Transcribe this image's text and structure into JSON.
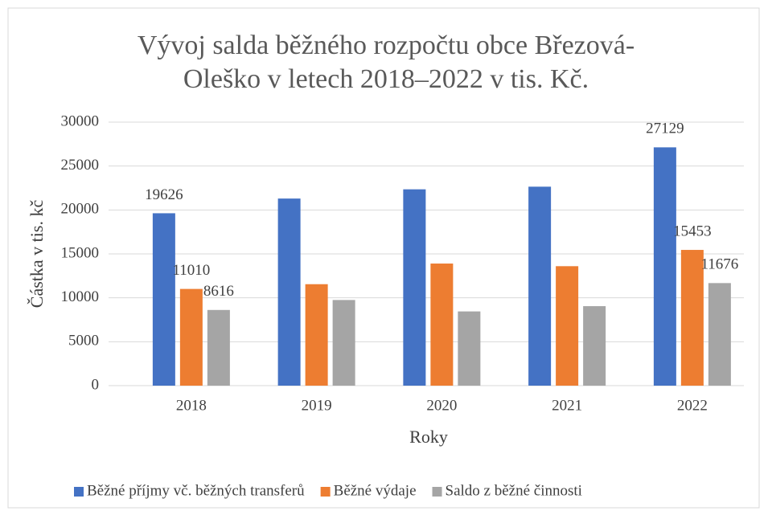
{
  "chart_data": {
    "type": "bar",
    "title": "Vývoj salda běžného rozpočtu obce Březová-Oleško v letech 2018–2022 v tis. Kč.",
    "x_label": "Roky",
    "y_label": "Částka v tis. kč",
    "categories": [
      "2018",
      "2019",
      "2020",
      "2021",
      "2022"
    ],
    "series": [
      {
        "name": "Běžné příjmy vč. běžných transferů",
        "color": "#4472c4",
        "values": [
          19626,
          21300,
          22350,
          22650,
          27129
        ],
        "value_labels": [
          "19626",
          null,
          null,
          null,
          "27129"
        ]
      },
      {
        "name": "Běžné výdaje",
        "color": "#ed7d31",
        "values": [
          11010,
          11550,
          13900,
          13600,
          15453
        ],
        "value_labels": [
          "11010",
          null,
          null,
          null,
          "15453"
        ]
      },
      {
        "name": "Saldo z běžné činnosti",
        "color": "#a5a5a5",
        "values": [
          8616,
          9750,
          8450,
          9050,
          11676
        ],
        "value_labels": [
          "8616",
          null,
          null,
          null,
          "11676"
        ]
      }
    ],
    "ylim": [
      0,
      30000
    ],
    "yticks": [
      0,
      5000,
      10000,
      15000,
      20000,
      25000,
      30000
    ],
    "grid": true,
    "legend": "bottom"
  }
}
